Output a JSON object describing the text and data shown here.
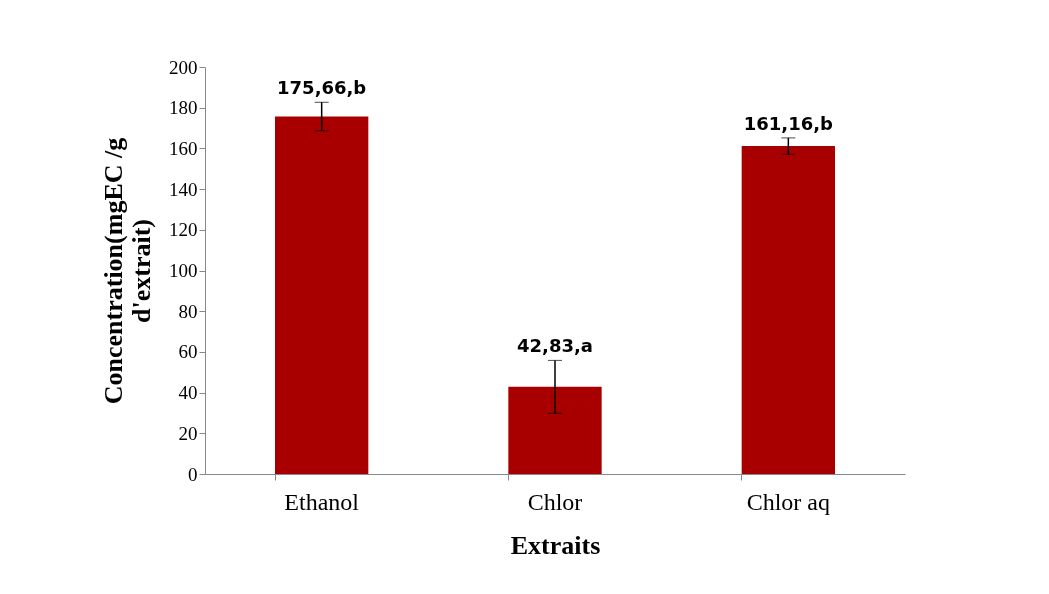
{
  "chart_data": {
    "type": "bar",
    "xlabel": "Extraits",
    "ylabel": "Concentration(mgEC /g d'extrait)",
    "categories": [
      "Ethanol",
      "Chlor",
      "Chlor aq"
    ],
    "values": [
      175.66,
      42.83,
      161.16
    ],
    "errors": [
      7,
      13,
      4
    ],
    "value_labels": [
      "175,66,b",
      "42,83,a",
      "161,16,b"
    ],
    "color": "#a80000",
    "ylim": [
      0,
      200
    ],
    "yticks": [
      0,
      20,
      40,
      60,
      80,
      100,
      120,
      140,
      160,
      180,
      200
    ],
    "grid": false
  }
}
